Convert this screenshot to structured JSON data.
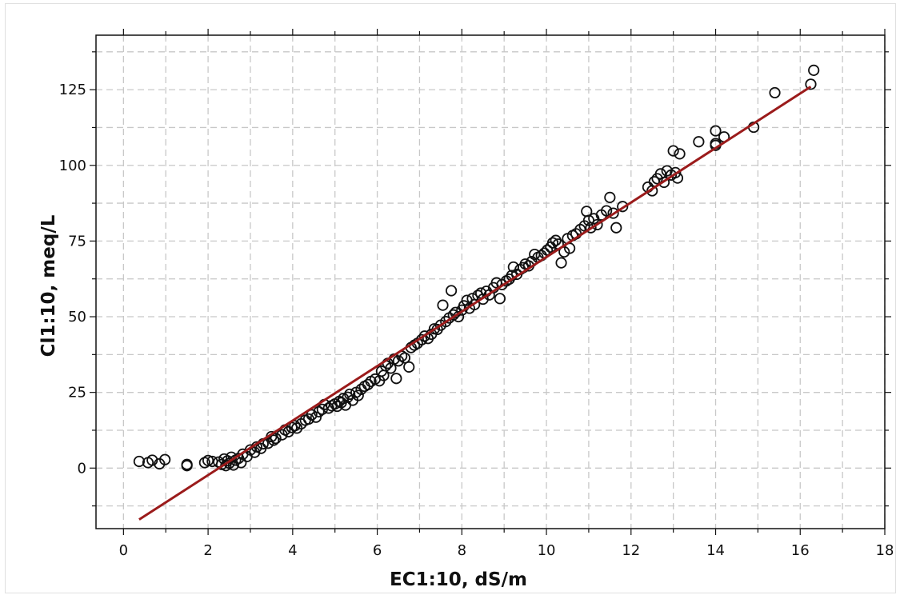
{
  "chart_data": {
    "type": "scatter",
    "title": "",
    "xlabel": "EC1:10, dS/m",
    "ylabel": "Cl1:10, meq/L",
    "xlim": [
      -0.65,
      18.0
    ],
    "ylim": [
      -20,
      143
    ],
    "x_ticks": [
      0,
      2,
      4,
      6,
      8,
      10,
      12,
      14,
      16,
      18
    ],
    "y_ticks": [
      0,
      25,
      50,
      75,
      100,
      125
    ],
    "grid": true,
    "grid_style": "dashed",
    "colors": {
      "points": "#111111",
      "fit_line": "#9b1b1b",
      "grid": "#c8c8c8"
    },
    "series": [
      {
        "marker": "open-circle",
        "points": [
          [
            0.37,
            2.2
          ],
          [
            0.58,
            1.8
          ],
          [
            0.68,
            2.6
          ],
          [
            0.85,
            1.4
          ],
          [
            0.98,
            2.8
          ],
          [
            1.5,
            1.2
          ],
          [
            1.5,
            0.8
          ],
          [
            1.92,
            1.8
          ],
          [
            2.0,
            2.5
          ],
          [
            2.1,
            2.2
          ],
          [
            2.25,
            2.0
          ],
          [
            2.32,
            1.2
          ],
          [
            2.38,
            3.0
          ],
          [
            2.42,
            0.8
          ],
          [
            2.46,
            2.4
          ],
          [
            2.5,
            1.6
          ],
          [
            2.55,
            3.6
          ],
          [
            2.6,
            1.0
          ],
          [
            2.65,
            2.6
          ],
          [
            2.72,
            3.2
          ],
          [
            2.78,
            1.8
          ],
          [
            2.82,
            4.6
          ],
          [
            2.92,
            3.8
          ],
          [
            3.0,
            6.0
          ],
          [
            3.1,
            5.2
          ],
          [
            3.15,
            7.0
          ],
          [
            3.25,
            6.5
          ],
          [
            3.3,
            8.0
          ],
          [
            3.42,
            8.2
          ],
          [
            3.5,
            10.4
          ],
          [
            3.55,
            9.2
          ],
          [
            3.6,
            9.8
          ],
          [
            3.75,
            11.0
          ],
          [
            3.82,
            12.6
          ],
          [
            3.9,
            12.0
          ],
          [
            3.98,
            13.4
          ],
          [
            4.05,
            14.0
          ],
          [
            4.1,
            13.2
          ],
          [
            4.2,
            14.6
          ],
          [
            4.3,
            15.8
          ],
          [
            4.38,
            16.2
          ],
          [
            4.45,
            17.6
          ],
          [
            4.55,
            16.8
          ],
          [
            4.62,
            18.6
          ],
          [
            4.7,
            19.4
          ],
          [
            4.75,
            21.0
          ],
          [
            4.85,
            19.8
          ],
          [
            4.92,
            20.6
          ],
          [
            5.0,
            21.2
          ],
          [
            5.05,
            20.4
          ],
          [
            5.1,
            22.0
          ],
          [
            5.15,
            21.6
          ],
          [
            5.2,
            23.0
          ],
          [
            5.25,
            20.8
          ],
          [
            5.3,
            23.4
          ],
          [
            5.35,
            24.4
          ],
          [
            5.42,
            22.4
          ],
          [
            5.5,
            25.0
          ],
          [
            5.55,
            24.0
          ],
          [
            5.62,
            26.0
          ],
          [
            5.7,
            27.0
          ],
          [
            5.78,
            27.6
          ],
          [
            5.85,
            28.6
          ],
          [
            5.95,
            29.4
          ],
          [
            6.05,
            28.8
          ],
          [
            6.1,
            32.0
          ],
          [
            6.15,
            30.6
          ],
          [
            6.2,
            33.8
          ],
          [
            6.25,
            34.6
          ],
          [
            6.32,
            33.0
          ],
          [
            6.4,
            36.0
          ],
          [
            6.45,
            29.6
          ],
          [
            6.5,
            35.4
          ],
          [
            6.58,
            37.0
          ],
          [
            6.65,
            36.4
          ],
          [
            6.75,
            33.4
          ],
          [
            6.8,
            39.8
          ],
          [
            6.88,
            40.6
          ],
          [
            6.95,
            41.2
          ],
          [
            7.05,
            42.4
          ],
          [
            7.12,
            43.6
          ],
          [
            7.2,
            42.8
          ],
          [
            7.28,
            44.2
          ],
          [
            7.35,
            46.0
          ],
          [
            7.42,
            45.8
          ],
          [
            7.5,
            47.2
          ],
          [
            7.55,
            53.8
          ],
          [
            7.62,
            48.4
          ],
          [
            7.7,
            49.6
          ],
          [
            7.75,
            58.6
          ],
          [
            7.8,
            50.6
          ],
          [
            7.85,
            51.4
          ],
          [
            7.92,
            50.0
          ],
          [
            8.0,
            52.2
          ],
          [
            8.05,
            53.6
          ],
          [
            8.12,
            55.4
          ],
          [
            8.18,
            52.8
          ],
          [
            8.25,
            56.0
          ],
          [
            8.3,
            54.0
          ],
          [
            8.38,
            57.0
          ],
          [
            8.45,
            57.8
          ],
          [
            8.5,
            55.8
          ],
          [
            8.58,
            58.4
          ],
          [
            8.65,
            57.2
          ],
          [
            8.75,
            59.6
          ],
          [
            8.82,
            61.2
          ],
          [
            8.9,
            56.0
          ],
          [
            8.95,
            60.6
          ],
          [
            9.05,
            61.8
          ],
          [
            9.12,
            62.4
          ],
          [
            9.18,
            63.6
          ],
          [
            9.22,
            66.4
          ],
          [
            9.3,
            64.0
          ],
          [
            9.38,
            65.6
          ],
          [
            9.45,
            66.2
          ],
          [
            9.5,
            67.4
          ],
          [
            9.58,
            66.8
          ],
          [
            9.65,
            68.2
          ],
          [
            9.72,
            70.6
          ],
          [
            9.8,
            69.6
          ],
          [
            9.88,
            70.2
          ],
          [
            9.95,
            71.0
          ],
          [
            10.02,
            72.0
          ],
          [
            10.1,
            73.0
          ],
          [
            10.15,
            74.4
          ],
          [
            10.22,
            75.2
          ],
          [
            10.28,
            74.0
          ],
          [
            10.35,
            67.8
          ],
          [
            10.42,
            71.4
          ],
          [
            10.5,
            75.8
          ],
          [
            10.55,
            72.6
          ],
          [
            10.62,
            76.8
          ],
          [
            10.7,
            77.4
          ],
          [
            10.8,
            78.8
          ],
          [
            10.9,
            80.0
          ],
          [
            10.95,
            84.8
          ],
          [
            11.0,
            81.8
          ],
          [
            11.05,
            79.4
          ],
          [
            11.12,
            82.4
          ],
          [
            11.2,
            80.4
          ],
          [
            11.3,
            83.6
          ],
          [
            11.42,
            85.0
          ],
          [
            11.5,
            89.4
          ],
          [
            11.58,
            84.2
          ],
          [
            11.65,
            79.4
          ],
          [
            11.8,
            86.4
          ],
          [
            12.4,
            92.8
          ],
          [
            12.5,
            91.6
          ],
          [
            12.55,
            94.6
          ],
          [
            12.62,
            95.6
          ],
          [
            12.7,
            97.2
          ],
          [
            12.78,
            94.4
          ],
          [
            12.85,
            98.2
          ],
          [
            12.95,
            96.8
          ],
          [
            13.0,
            104.8
          ],
          [
            13.05,
            97.6
          ],
          [
            13.1,
            95.8
          ],
          [
            13.15,
            103.8
          ],
          [
            13.6,
            107.8
          ],
          [
            14.0,
            111.4
          ],
          [
            14.0,
            107.2
          ],
          [
            14.0,
            106.6
          ],
          [
            14.2,
            109.4
          ],
          [
            14.9,
            112.6
          ],
          [
            15.4,
            124.0
          ],
          [
            16.25,
            126.8
          ],
          [
            16.32,
            131.4
          ]
        ]
      }
    ],
    "fit_line": {
      "x": [
        0.37,
        16.25
      ],
      "y": [
        -17,
        126
      ]
    }
  }
}
